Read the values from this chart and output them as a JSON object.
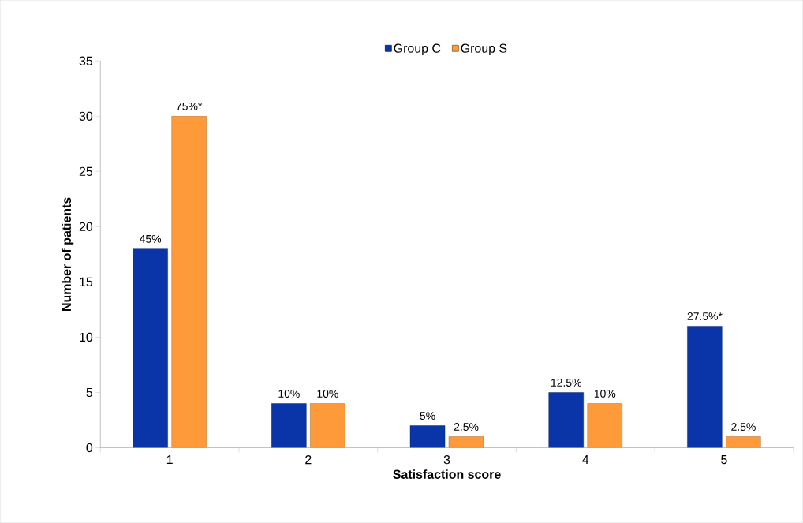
{
  "chart_data": {
    "type": "bar",
    "xlabel": "Satisfaction score",
    "ylabel": "Number of patients",
    "categories": [
      "1",
      "2",
      "3",
      "4",
      "5"
    ],
    "series": [
      {
        "name": "Group C",
        "color": "#0a35a8",
        "values": [
          18,
          4,
          2,
          5,
          11
        ]
      },
      {
        "name": "Group S",
        "color": "#ff9a3a",
        "values": [
          30,
          4,
          1,
          4,
          1
        ]
      }
    ],
    "annotations": [
      {
        "text": "45%",
        "x": "1",
        "y": 18
      },
      {
        "text": "10%",
        "x": "2",
        "y": 4
      },
      {
        "text": "5%",
        "x": "3",
        "y": 2
      },
      {
        "text": "12.5%",
        "x": "4",
        "y": 5
      },
      {
        "text": "27.5%*",
        "x": "5",
        "y": 11
      },
      {
        "text": "75%*",
        "x": "1",
        "y": 30
      },
      {
        "text": "10%",
        "x": "2",
        "y": 4
      },
      {
        "text": "2.5%",
        "x": "3",
        "y": 1
      },
      {
        "text": "10%",
        "x": "4",
        "y": 4
      },
      {
        "text": "2.5%",
        "x": "5",
        "y": 1
      }
    ],
    "ylim": [
      0,
      35
    ],
    "yticks": [
      0,
      5,
      10,
      15,
      20,
      25,
      30,
      35
    ],
    "grid": false,
    "legend": "top"
  }
}
